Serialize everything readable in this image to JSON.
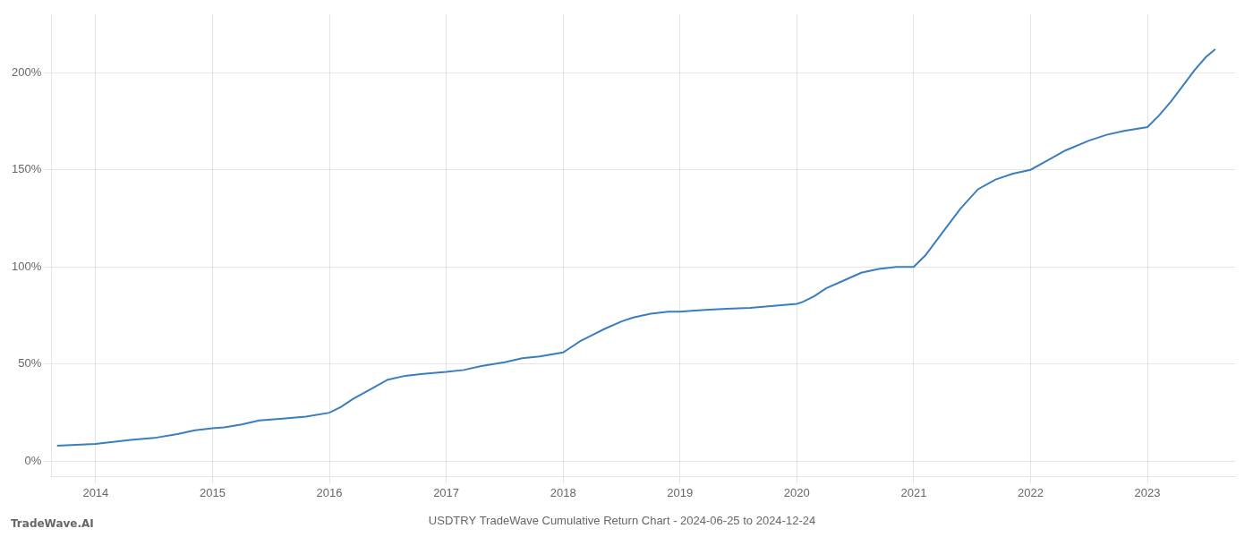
{
  "chart_data": {
    "type": "line",
    "title": "USDTRY TradeWave Cumulative Return Chart - 2024-06-25 to 2024-12-24",
    "annotations": [
      "TradeWave.AI"
    ],
    "x": [
      2013.67,
      2014.0,
      2014.08,
      2014.15,
      2014.3,
      2014.5,
      2014.7,
      2014.85,
      2015.0,
      2015.1,
      2015.25,
      2015.4,
      2015.6,
      2015.8,
      2016.0,
      2016.1,
      2016.2,
      2016.35,
      2016.5,
      2016.65,
      2016.8,
      2017.0,
      2017.15,
      2017.3,
      2017.5,
      2017.65,
      2017.8,
      2018.0,
      2018.05,
      2018.15,
      2018.25,
      2018.35,
      2018.5,
      2018.6,
      2018.75,
      2018.9,
      2019.0,
      2019.1,
      2019.25,
      2019.4,
      2019.6,
      2019.8,
      2020.0,
      2020.05,
      2020.15,
      2020.25,
      2020.4,
      2020.55,
      2020.7,
      2020.85,
      2021.0,
      2021.1,
      2021.25,
      2021.4,
      2021.55,
      2021.7,
      2021.85,
      2022.0,
      2022.15,
      2022.3,
      2022.5,
      2022.65,
      2022.8,
      2023.0,
      2023.1,
      2023.2,
      2023.3,
      2023.4,
      2023.5,
      2023.58
    ],
    "values": [
      8,
      9,
      9.5,
      10,
      11,
      12,
      14,
      16,
      17,
      17.5,
      19,
      21,
      22,
      23,
      25,
      28,
      32,
      37,
      42,
      44,
      45,
      46,
      47,
      49,
      51,
      53,
      54,
      56,
      58,
      62,
      65,
      68,
      72,
      74,
      76,
      77,
      77,
      77.5,
      78,
      78.5,
      79,
      80,
      81,
      82,
      85,
      89,
      93,
      97,
      99,
      100,
      100,
      106,
      118,
      130,
      140,
      145,
      148,
      150,
      155,
      160,
      165,
      168,
      170,
      172,
      178,
      185,
      193,
      201,
      208,
      212
    ],
    "color": "#3a7ebf",
    "xlim": [
      2013.62,
      2023.75
    ],
    "xticks": [
      2014,
      2015,
      2016,
      2017,
      2018,
      2019,
      2020,
      2021,
      2022,
      2023
    ],
    "ylim": [
      -8,
      230
    ],
    "yticks": [
      {
        "value": 0,
        "label": "0%"
      },
      {
        "value": 50,
        "label": "50%"
      },
      {
        "value": 100,
        "label": "100%"
      },
      {
        "value": 150,
        "label": "150%"
      },
      {
        "value": 200,
        "label": "200%"
      }
    ],
    "grid": true,
    "marker": "none"
  }
}
